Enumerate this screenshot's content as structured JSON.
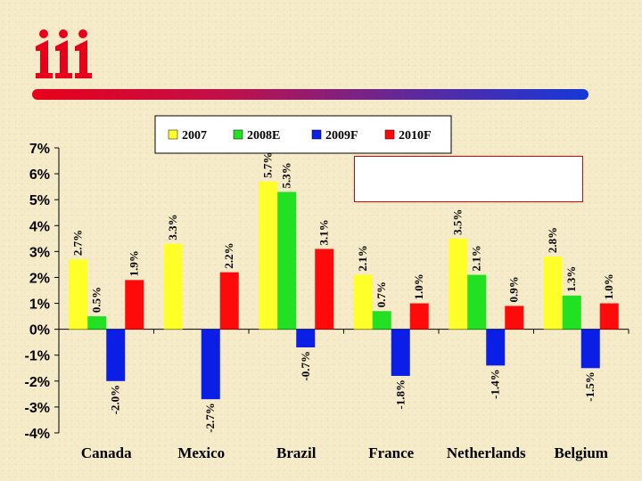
{
  "logo": {
    "alt": "iii"
  },
  "colors": {
    "s2007": "#ffff2a",
    "s2008E": "#22e022",
    "s2009F": "#0a1ee6",
    "s2010F": "#ff0a0a",
    "logo_red": "#e8001a",
    "note_border": "#e00000"
  },
  "chart_data": {
    "type": "bar",
    "categories": [
      "Canada",
      "Mexico",
      "Brazil",
      "France",
      "Netherlands",
      "Belgium"
    ],
    "ylim": [
      -4,
      7
    ],
    "yticks": [
      {
        "value": 7,
        "label": "7%"
      },
      {
        "value": 6,
        "label": "6%"
      },
      {
        "value": 5,
        "label": "5%"
      },
      {
        "value": 4,
        "label": "4%"
      },
      {
        "value": 3,
        "label": "3%"
      },
      {
        "value": 2,
        "label": "2%"
      },
      {
        "value": 1,
        "label": "1%"
      },
      {
        "value": 0,
        "label": "0%"
      },
      {
        "value": -1,
        "label": "-1%"
      },
      {
        "value": -2,
        "label": "-2%"
      },
      {
        "value": -3,
        "label": "-3%"
      },
      {
        "value": -4,
        "label": "-4%"
      }
    ],
    "legend_position": "top",
    "series": [
      {
        "name": "2007",
        "color": "#ffff2a",
        "values": [
          2.7,
          3.3,
          5.7,
          2.1,
          3.5,
          2.8
        ],
        "labels": [
          "2.7%",
          "3.3%",
          "5.7%",
          "2.1%",
          "3.5%",
          "2.8%"
        ]
      },
      {
        "name": "2008E",
        "color": "#22e022",
        "values": [
          0.5,
          null,
          5.3,
          0.7,
          2.1,
          1.3
        ],
        "labels": [
          "0.5%",
          "",
          "5.3%",
          "0.7%",
          "2.1%",
          "1.3%"
        ]
      },
      {
        "name": "2009F",
        "color": "#0a1ee6",
        "values": [
          -2.0,
          -2.7,
          -0.7,
          -1.8,
          -1.4,
          -1.5
        ],
        "labels": [
          "-2.0%",
          "-2.7%",
          "-0.7%",
          "-1.8%",
          "-1.4%",
          "-1.5%"
        ]
      },
      {
        "name": "2010F",
        "color": "#ff0a0a",
        "values": [
          1.9,
          2.2,
          3.1,
          1.0,
          0.9,
          1.0
        ],
        "labels": [
          "1.9%",
          "2.2%",
          "3.1%",
          "1.0%",
          "0.9%",
          "1.0%"
        ]
      }
    ]
  }
}
